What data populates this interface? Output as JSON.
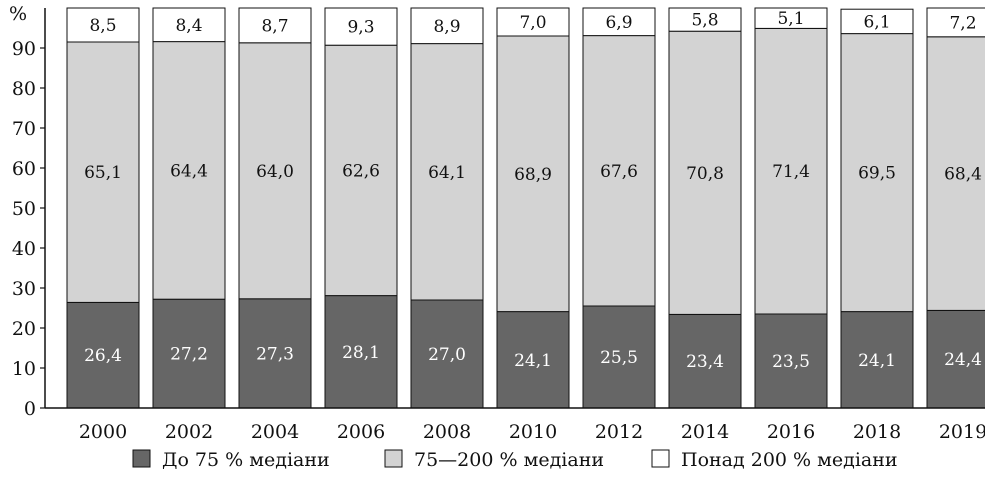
{
  "chart_data": {
    "type": "bar",
    "stacked": true,
    "ylabel": "%",
    "ylim": [
      0,
      100
    ],
    "yticks": [
      0,
      10,
      20,
      30,
      40,
      50,
      60,
      70,
      80,
      90
    ],
    "grid": false,
    "legend_position": "bottom",
    "categories": [
      "2000",
      "2002",
      "2004",
      "2006",
      "2008",
      "2010",
      "2012",
      "2014",
      "2016",
      "2018",
      "2019"
    ],
    "series": [
      {
        "name": "До 75 % медіани",
        "color": "#666666",
        "label_color": "#ffffff",
        "values": [
          26.4,
          27.2,
          27.3,
          28.1,
          27.0,
          24.1,
          25.5,
          23.4,
          23.5,
          24.1,
          24.4
        ],
        "labels": [
          "26,4",
          "27,2",
          "27,3",
          "28,1",
          "27,0",
          "24,1",
          "25,5",
          "23,4",
          "23,5",
          "24,1",
          "24,4"
        ]
      },
      {
        "name": "75—200 % медіани",
        "color": "#d3d3d3",
        "label_color": "#111111",
        "values": [
          65.1,
          64.4,
          64.0,
          62.6,
          64.1,
          68.9,
          67.6,
          70.8,
          71.4,
          69.5,
          68.4
        ],
        "labels": [
          "65,1",
          "64,4",
          "64,0",
          "62,6",
          "64,1",
          "68,9",
          "67,6",
          "70,8",
          "71,4",
          "69,5",
          "68,4"
        ]
      },
      {
        "name": "Понад 200 % медіани",
        "color": "#ffffff",
        "label_color": "#111111",
        "values": [
          8.5,
          8.4,
          8.7,
          9.3,
          8.9,
          7.0,
          6.9,
          5.8,
          5.1,
          6.1,
          7.2
        ],
        "labels": [
          "8,5",
          "8,4",
          "8,7",
          "9,3",
          "8,9",
          "7,0",
          "6,9",
          "5,8",
          "5,1",
          "6,1",
          "7,2"
        ]
      }
    ]
  }
}
